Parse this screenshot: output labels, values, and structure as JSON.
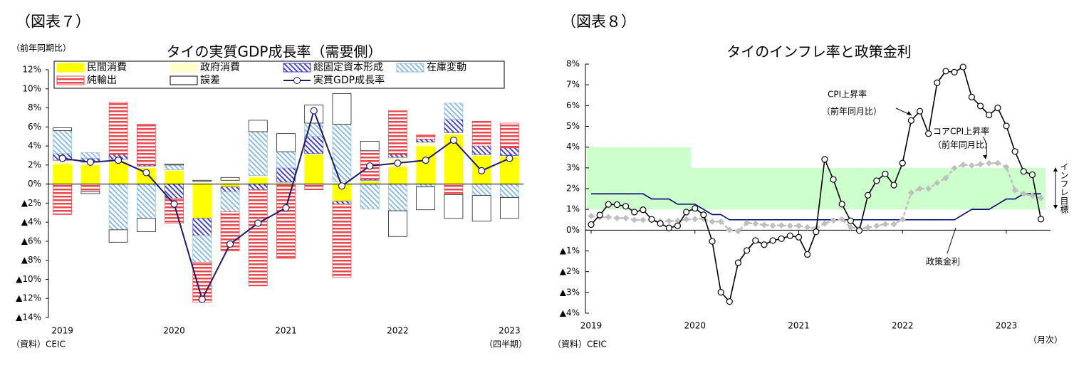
{
  "chart_data": [
    {
      "type": "bar",
      "stacked": true,
      "figure_label": "（図表７）",
      "title": "タイの実質GDP成長率（需要側）",
      "y_label": "（前年同期比）",
      "source": "（資料）CEIC",
      "x_note": "（四半期）",
      "categories": [
        "2019",
        null,
        null,
        null,
        "2020",
        null,
        null,
        null,
        "2021",
        null,
        null,
        null,
        "2022",
        null,
        null,
        null,
        "2023"
      ],
      "ylim": [
        -14,
        12
      ],
      "yticks": [
        {
          "value": 12,
          "label": "12%"
        },
        {
          "value": 10,
          "label": "10%"
        },
        {
          "value": 8,
          "label": "8%"
        },
        {
          "value": 6,
          "label": "6%"
        },
        {
          "value": 4,
          "label": "4%"
        },
        {
          "value": 2,
          "label": "2%"
        },
        {
          "value": 0,
          "label": "0%"
        },
        {
          "value": -2,
          "label": "▲2%"
        },
        {
          "value": -4,
          "label": "▲4%"
        },
        {
          "value": -6,
          "label": "▲6%"
        },
        {
          "value": -8,
          "label": "▲8%"
        },
        {
          "value": -10,
          "label": "▲10%"
        },
        {
          "value": -12,
          "label": "▲12%"
        },
        {
          "value": -14,
          "label": "▲14%"
        }
      ],
      "series": [
        {
          "name": "民間消費",
          "color": "#ffff00",
          "pattern": "solid",
          "values": [
            2.1,
            2.0,
            2.3,
            1.7,
            1.4,
            -3.6,
            -0.3,
            0.7,
            -0.1,
            3.1,
            -1.8,
            0.3,
            1.8,
            4.0,
            5.2,
            3.0,
            2.9
          ]
        },
        {
          "name": "政府消費",
          "color": "#ffffcc",
          "pattern": "solid",
          "values": [
            0.4,
            0.3,
            0.3,
            0.2,
            0.1,
            0.3,
            0.4,
            0.2,
            0.2,
            0.1,
            0.3,
            0.1,
            1.0,
            0.4,
            0.2,
            0.1,
            0.1
          ]
        },
        {
          "name": "総固定資本形成",
          "color": "#4646c8",
          "pattern": "diagonal",
          "values": [
            0.7,
            0.4,
            0.5,
            0.1,
            -1.5,
            -1.8,
            -0.5,
            -0.6,
            1.5,
            1.8,
            -0.3,
            0.1,
            0.3,
            0.3,
            1.4,
            0.9,
            0.8
          ]
        },
        {
          "name": "在庫変動",
          "color": "#8cbce0",
          "pattern": "diagonal",
          "values": [
            2.4,
            0.6,
            -4.8,
            -3.6,
            0.5,
            -2.8,
            -2.1,
            4.6,
            1.7,
            1.4,
            6.0,
            -2.6,
            -2.8,
            -0.3,
            1.7,
            -1.2,
            -1.4
          ]
        },
        {
          "name": "純輸出",
          "color": "#e8474c",
          "pattern": "horizontal",
          "values": [
            -3.2,
            -0.8,
            5.5,
            4.3,
            -2.6,
            -4.2,
            -4.1,
            -10.1,
            -7.7,
            -0.6,
            -7.7,
            3.0,
            4.6,
            0.5,
            -1.1,
            2.6,
            2.6
          ]
        },
        {
          "name": "誤差",
          "color": "#ffffff",
          "pattern": "solid",
          "edgecolor": "#000000",
          "values": [
            0.3,
            -0.2,
            -1.3,
            -1.4,
            0.1,
            0.1,
            0.3,
            1.2,
            1.9,
            1.9,
            3.2,
            1.0,
            -2.7,
            -2.4,
            -2.5,
            -2.7,
            -2.2
          ]
        },
        {
          "name": "実質GDP成長率",
          "type": "line",
          "color": "#1a1a6e",
          "marker": "circle",
          "values": [
            2.7,
            2.3,
            2.5,
            1.2,
            -2.1,
            -12.1,
            -6.3,
            -4.1,
            -2.5,
            7.7,
            -0.2,
            1.9,
            2.2,
            2.5,
            4.6,
            1.4,
            2.7
          ]
        }
      ]
    },
    {
      "type": "line",
      "figure_label": "（図表８）",
      "title": "タイのインフレ率と政策金利",
      "source": "（資料）CEIC",
      "x_note": "（月次）",
      "categories": [
        "2019",
        null,
        null,
        null,
        null,
        null,
        null,
        null,
        null,
        null,
        null,
        null,
        "2020",
        null,
        null,
        null,
        null,
        null,
        null,
        null,
        null,
        null,
        null,
        null,
        "2021",
        null,
        null,
        null,
        null,
        null,
        null,
        null,
        null,
        null,
        null,
        null,
        "2022",
        null,
        null,
        null,
        null,
        null,
        null,
        null,
        null,
        null,
        null,
        null,
        "2023",
        null,
        null,
        null,
        null
      ],
      "ylim": [
        -4,
        8
      ],
      "yticks": [
        {
          "value": 8,
          "label": "8%"
        },
        {
          "value": 7,
          "label": "7%"
        },
        {
          "value": 6,
          "label": "6%"
        },
        {
          "value": 5,
          "label": "5%"
        },
        {
          "value": 4,
          "label": "4%"
        },
        {
          "value": 3,
          "label": "3%"
        },
        {
          "value": 2,
          "label": "2%"
        },
        {
          "value": 1,
          "label": "1%"
        },
        {
          "value": 0,
          "label": "0%"
        },
        {
          "value": -1,
          "label": "▲1%"
        },
        {
          "value": -2,
          "label": "▲2%"
        },
        {
          "value": -3,
          "label": "▲3%"
        },
        {
          "value": -4,
          "label": "▲4%"
        }
      ],
      "band": {
        "name": "インフレ目標",
        "color": "#ccffcc",
        "lower": [
          1,
          1,
          1,
          1,
          1,
          1,
          1,
          1,
          1,
          1,
          1,
          1,
          1,
          1,
          1,
          1,
          1,
          1,
          1,
          1,
          1,
          1,
          1,
          1,
          1,
          1,
          1,
          1,
          1,
          1,
          1,
          1,
          1,
          1,
          1,
          1,
          1,
          1,
          1,
          1,
          1,
          1,
          1,
          1,
          1,
          1,
          1,
          1,
          1,
          1,
          1,
          1,
          1
        ],
        "upper": [
          4,
          4,
          4,
          4,
          4,
          4,
          4,
          4,
          4,
          4,
          4,
          4,
          3,
          3,
          3,
          3,
          3,
          3,
          3,
          3,
          3,
          3,
          3,
          3,
          3,
          3,
          3,
          3,
          3,
          3,
          3,
          3,
          3,
          3,
          3,
          3,
          3,
          3,
          3,
          3,
          3,
          3,
          3,
          3,
          3,
          3,
          3,
          3,
          3,
          3,
          3,
          3,
          3
        ]
      },
      "series": [
        {
          "name": "CPI上昇率",
          "annotation": "（前年同月比）",
          "color": "#000000",
          "marker": "circle",
          "values": [
            0.27,
            0.73,
            1.24,
            1.23,
            1.15,
            0.87,
            0.98,
            0.52,
            0.32,
            0.11,
            0.21,
            0.87,
            1.05,
            0.74,
            -0.54,
            -2.99,
            -3.44,
            -1.57,
            -0.98,
            -0.5,
            -0.7,
            -0.5,
            -0.41,
            -0.27,
            -0.34,
            -1.17,
            -0.08,
            3.41,
            2.44,
            1.25,
            0.45,
            -0.02,
            1.68,
            2.38,
            2.71,
            2.17,
            3.23,
            5.28,
            5.73,
            4.65,
            7.1,
            7.66,
            7.61,
            7.86,
            6.41,
            5.98,
            5.55,
            5.89,
            5.02,
            3.79,
            2.83,
            2.67,
            0.53
          ]
        },
        {
          "name": "コアCPI上昇率",
          "annotation": "（前年同月比）",
          "color": "#bfbfbf",
          "marker": "diamond",
          "dash": true,
          "values": [
            0.68,
            0.62,
            0.63,
            0.58,
            0.58,
            0.49,
            0.49,
            0.48,
            0.43,
            0.44,
            0.45,
            0.52,
            0.53,
            0.55,
            0.41,
            0.41,
            0.01,
            -0.05,
            0.35,
            0.31,
            0.25,
            0.22,
            0.23,
            0.21,
            0.21,
            0.14,
            0.09,
            0.32,
            0.47,
            0.52,
            0.14,
            0.07,
            0.13,
            0.21,
            0.29,
            0.29,
            0.52,
            1.8,
            2.0,
            2.0,
            2.28,
            2.51,
            2.99,
            3.15,
            3.12,
            3.17,
            3.22,
            3.23,
            3.04,
            1.93,
            1.75,
            1.66,
            1.55
          ]
        },
        {
          "name": "政策金利",
          "color": "#00006e",
          "values": [
            1.75,
            1.75,
            1.75,
            1.75,
            1.75,
            1.75,
            1.75,
            1.5,
            1.5,
            1.5,
            1.25,
            1.25,
            1.25,
            1.0,
            0.75,
            0.75,
            0.5,
            0.5,
            0.5,
            0.5,
            0.5,
            0.5,
            0.5,
            0.5,
            0.5,
            0.5,
            0.5,
            0.5,
            0.5,
            0.5,
            0.5,
            0.5,
            0.5,
            0.5,
            0.5,
            0.5,
            0.5,
            0.5,
            0.5,
            0.5,
            0.5,
            0.5,
            0.5,
            0.75,
            1.0,
            1.0,
            1.0,
            1.25,
            1.5,
            1.5,
            1.75,
            1.75,
            1.75
          ]
        }
      ]
    }
  ]
}
